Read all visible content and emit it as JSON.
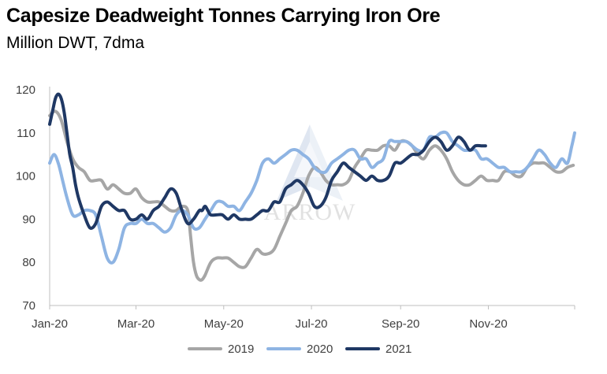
{
  "chart_data": {
    "type": "line",
    "title": "Capesize Deadweight Tonnes Carrying Iron Ore",
    "subtitle": "Million DWT, 7dma",
    "watermark": "ARROW",
    "xlabel": "",
    "ylabel": "",
    "ylim": [
      70,
      120
    ],
    "xlim": [
      0,
      365
    ],
    "y_ticks": [
      70,
      80,
      90,
      100,
      110,
      120
    ],
    "x_ticks": [
      {
        "label": "Jan-20",
        "day": 0
      },
      {
        "label": "Mar-20",
        "day": 60
      },
      {
        "label": "May-20",
        "day": 121
      },
      {
        "label": "Jul-20",
        "day": 182
      },
      {
        "label": "Sep-20",
        "day": 244
      },
      {
        "label": "Nov-20",
        "day": 305
      }
    ],
    "grid": false,
    "legend_position": "bottom",
    "series": [
      {
        "name": "2019",
        "color": "#a6a6a6",
        "x": [
          0,
          4,
          8,
          12,
          16,
          20,
          24,
          28,
          32,
          36,
          40,
          44,
          48,
          52,
          56,
          60,
          64,
          68,
          72,
          76,
          80,
          84,
          88,
          92,
          96,
          98,
          100,
          102,
          104,
          106,
          108,
          112,
          116,
          120,
          124,
          128,
          132,
          136,
          140,
          144,
          148,
          152,
          156,
          160,
          164,
          168,
          172,
          176,
          180,
          184,
          188,
          192,
          196,
          200,
          204,
          208,
          212,
          216,
          220,
          224,
          228,
          232,
          236,
          240,
          244,
          248,
          252,
          256,
          260,
          264,
          268,
          272,
          276,
          280,
          284,
          288,
          292,
          296,
          300,
          304,
          308,
          312,
          316,
          320,
          324,
          328,
          332,
          336,
          340,
          344,
          348,
          352,
          356,
          360,
          364
        ],
        "y": [
          114,
          115,
          113,
          108,
          104,
          102,
          101,
          99,
          99,
          99,
          97,
          98,
          97,
          96,
          96,
          97,
          95,
          94,
          94,
          94,
          93,
          92,
          92,
          93,
          92,
          86,
          80,
          77,
          76,
          76,
          77,
          80,
          81,
          81,
          81,
          80,
          79,
          79,
          81,
          83,
          82,
          82,
          83,
          86,
          89,
          92,
          93,
          96,
          100,
          102,
          101,
          99,
          98,
          98,
          98,
          99,
          102,
          104,
          106,
          106,
          106,
          107,
          107,
          106,
          108,
          108,
          107,
          105,
          104,
          106,
          107,
          106,
          104,
          101,
          99,
          98,
          98,
          99,
          100,
          99,
          99,
          99,
          101,
          101,
          100,
          100,
          102,
          103,
          103,
          103,
          102,
          101,
          101,
          102,
          102.5
        ]
      },
      {
        "name": "2020",
        "color": "#8eb4e3",
        "x": [
          0,
          3,
          6,
          9,
          12,
          16,
          20,
          24,
          28,
          32,
          36,
          40,
          44,
          48,
          52,
          56,
          60,
          64,
          68,
          72,
          76,
          80,
          84,
          88,
          92,
          96,
          100,
          104,
          108,
          112,
          116,
          120,
          124,
          128,
          132,
          136,
          140,
          144,
          148,
          152,
          156,
          160,
          164,
          168,
          172,
          176,
          180,
          184,
          188,
          192,
          196,
          200,
          204,
          208,
          212,
          216,
          220,
          224,
          228,
          232,
          236,
          240,
          244,
          248,
          252,
          256,
          260,
          264,
          268,
          272,
          276,
          280,
          284,
          288,
          292,
          296,
          300,
          304,
          308,
          312,
          316,
          320,
          324,
          328,
          332,
          336,
          340,
          344,
          348,
          352,
          356,
          360,
          363,
          365
        ],
        "y": [
          103,
          105,
          103,
          99,
          95,
          91,
          91,
          92,
          92,
          91,
          86,
          81,
          80,
          83,
          88,
          89,
          89,
          90,
          89,
          89,
          88,
          87,
          88,
          91,
          92,
          91,
          88,
          88,
          90,
          92,
          94,
          94,
          93,
          93,
          92,
          94,
          96,
          99,
          103,
          104,
          103,
          104,
          105,
          106,
          106,
          105,
          104,
          102,
          101,
          101,
          103,
          104,
          105,
          106,
          106,
          104,
          104,
          102,
          103,
          104,
          108,
          108,
          108,
          108,
          107,
          106,
          106,
          109,
          109,
          110,
          110,
          108,
          107,
          106,
          106,
          106,
          104,
          104,
          103,
          102,
          102,
          101,
          101,
          101,
          102,
          104,
          106,
          105,
          103,
          102,
          104,
          103,
          107,
          110
        ]
      },
      {
        "name": "2021",
        "color": "#1f3864",
        "x": [
          0,
          2,
          4,
          6,
          8,
          10,
          12,
          14,
          16,
          18,
          20,
          24,
          28,
          32,
          36,
          40,
          44,
          48,
          52,
          56,
          60,
          64,
          68,
          72,
          76,
          80,
          84,
          88,
          92,
          96,
          100,
          104,
          106,
          108,
          110,
          112,
          116,
          120,
          124,
          128,
          132,
          136,
          140,
          144,
          148,
          152,
          156,
          160,
          164,
          168,
          172,
          176,
          180,
          184,
          188,
          192,
          196,
          200,
          204,
          208,
          212,
          216,
          220,
          224,
          228,
          232,
          236,
          240,
          244,
          248,
          252,
          256,
          260,
          264,
          268,
          272,
          276,
          280,
          284,
          288,
          292,
          296,
          300,
          303
        ],
        "y": [
          112,
          115,
          118,
          119,
          118,
          115,
          110,
          105,
          102,
          98,
          95,
          91,
          88,
          89,
          93,
          94,
          93,
          92,
          92,
          90,
          90,
          91,
          90,
          92,
          93,
          95,
          97,
          96,
          92,
          89,
          90,
          92,
          92,
          93,
          92,
          91,
          91,
          91,
          90,
          91,
          90,
          90,
          90,
          91,
          92,
          92,
          94,
          94,
          97,
          98,
          99,
          98,
          96,
          93,
          93,
          95,
          99,
          101,
          103,
          102,
          101,
          100,
          99,
          100,
          99,
          99,
          100,
          103,
          103,
          104,
          105,
          105,
          106,
          108,
          109,
          108,
          106,
          107,
          109,
          108,
          106,
          107,
          107,
          107
        ]
      }
    ]
  }
}
